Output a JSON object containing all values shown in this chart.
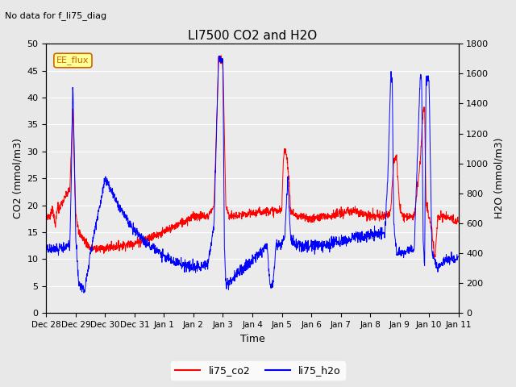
{
  "title": "LI7500 CO2 and H2O",
  "subtitle": "No data for f_li75_diag",
  "xlabel": "Time",
  "ylabel_left": "CO2 (mmol/m3)",
  "ylabel_right": "H2O (mmol/m3)",
  "ylim_left": [
    0,
    50
  ],
  "ylim_right": [
    0,
    1800
  ],
  "yticks_left": [
    0,
    5,
    10,
    15,
    20,
    25,
    30,
    35,
    40,
    45,
    50
  ],
  "yticks_right": [
    0,
    200,
    400,
    600,
    800,
    1000,
    1200,
    1400,
    1600,
    1800
  ],
  "legend_label1": "li75_co2",
  "legend_label2": "li75_h2o",
  "color_co2": "#ff0000",
  "color_h2o": "#0000ff",
  "annotation_text": "EE_flux",
  "background_color": "#e8e8e8",
  "plot_bg_color": "#ebebeb",
  "grid_color": "#ffffff",
  "tick_labels": [
    "Dec 28",
    "Dec 29",
    "Dec 30",
    "Dec 31",
    "Jan 1",
    "Jan 2",
    "Jan 3",
    "Jan 4",
    "Jan 5",
    "Jan 6",
    "Jan 7",
    "Jan 8",
    "Jan 9",
    "Jan 10",
    "Jan 11"
  ],
  "num_points": 2000
}
